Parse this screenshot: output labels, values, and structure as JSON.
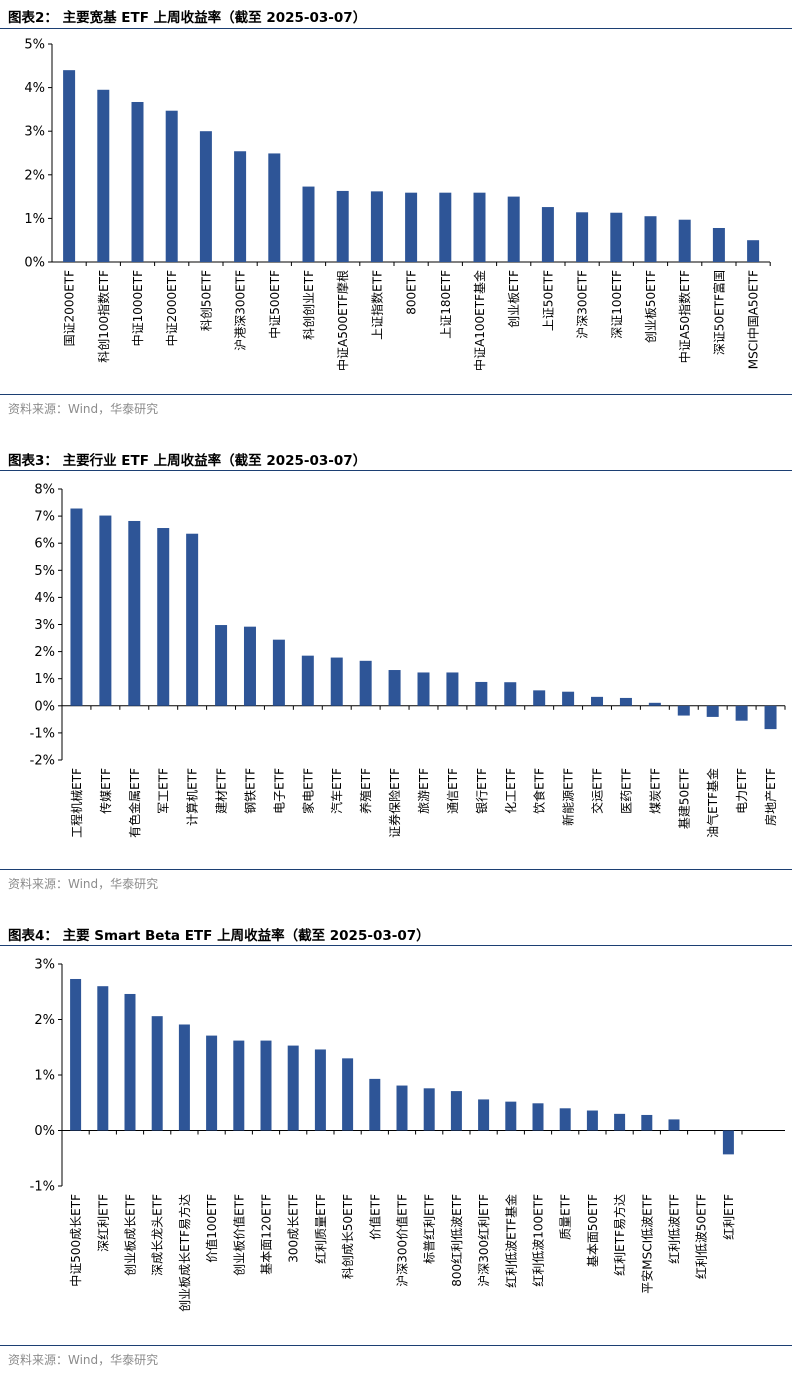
{
  "charts": [
    {
      "figure_title": "图表2：  主要宽基 ETF 上周收益率（截至 2025-03-07）",
      "source": "资料来源：Wind，华泰研究",
      "chart_data": {
        "type": "bar",
        "ylim": [
          0,
          5
        ],
        "ytick_values": [
          0,
          1,
          2,
          3,
          4,
          5
        ],
        "ytick_labels": [
          "0%",
          "1%",
          "2%",
          "3%",
          "4%",
          "5%"
        ],
        "bar_color": "#2e5597",
        "categories": [
          "国证2000ETF",
          "科创100指数ETF",
          "中证1000ETF",
          "中证2000ETF",
          "科创50ETF",
          "沪港深300ETF",
          "中证500ETF",
          "科创创业ETF",
          "中证A500ETF摩根",
          "上证指数ETF",
          "800ETF",
          "上证180ETF",
          "中证A100ETF基金",
          "创业板ETF",
          "上证50ETF",
          "沪深300ETF",
          "深证100ETF",
          "创业板50ETF",
          "中证A50指数ETF",
          "深证50ETF富国",
          "MSCI中国A50ETF"
        ],
        "values": [
          4.4,
          3.95,
          3.67,
          3.47,
          3.0,
          2.54,
          2.49,
          1.73,
          1.63,
          1.62,
          1.59,
          1.59,
          1.59,
          1.5,
          1.26,
          1.14,
          1.13,
          1.05,
          0.97,
          0.78,
          0.5
        ]
      }
    },
    {
      "figure_title": "图表3：  主要行业 ETF 上周收益率（截至 2025-03-07）",
      "source": "资料来源：Wind，华泰研究",
      "chart_data": {
        "type": "bar",
        "ylim": [
          -2,
          8
        ],
        "ytick_values": [
          -2,
          -1,
          0,
          1,
          2,
          3,
          4,
          5,
          6,
          7,
          8
        ],
        "ytick_labels": [
          "-2%",
          "-1%",
          "0%",
          "1%",
          "2%",
          "3%",
          "4%",
          "5%",
          "6%",
          "7%",
          "8%"
        ],
        "bar_color": "#2e5597",
        "categories": [
          "工程机械ETF",
          "传媒ETF",
          "有色金属ETF",
          "军工ETF",
          "计算机ETF",
          "建材ETF",
          "钢铁ETF",
          "电子ETF",
          "家电ETF",
          "汽车ETF",
          "养殖ETF",
          "证券保险ETF",
          "旅游ETF",
          "通信ETF",
          "银行ETF",
          "化工ETF",
          "饮食ETF",
          "新能源ETF",
          "交运ETF",
          "医药ETF",
          "煤炭ETF",
          "基建50ETF",
          "油气ETF基金",
          "电力ETF",
          "房地产ETF"
        ],
        "values": [
          7.28,
          7.02,
          6.82,
          6.56,
          6.35,
          2.98,
          2.92,
          2.44,
          1.85,
          1.78,
          1.66,
          1.32,
          1.23,
          1.23,
          0.88,
          0.87,
          0.57,
          0.52,
          0.33,
          0.29,
          0.11,
          -0.36,
          -0.41,
          -0.55,
          -0.86
        ]
      }
    },
    {
      "figure_title": "图表4：  主要 Smart Beta ETF 上周收益率（截至 2025-03-07）",
      "source": "资料来源：Wind，华泰研究",
      "chart_data": {
        "type": "bar",
        "ylim": [
          -1,
          3
        ],
        "ytick_values": [
          -1,
          0,
          1,
          2,
          3
        ],
        "ytick_labels": [
          "-1%",
          "0%",
          "1%",
          "2%",
          "3%"
        ],
        "bar_color": "#2e5597",
        "categories": [
          "中证500成长ETF",
          "深红利ETF",
          "创业板成长ETF",
          "深成长龙头ETF",
          "创业板成长ETF易方达",
          "价值100ETF",
          "创业板价值ETF",
          "基本面120ETF",
          "300成长ETF",
          "红利质量ETF",
          "科创成长50ETF",
          "价值ETF",
          "沪深300价值ETF",
          "标普红利ETF",
          "800红利低波ETF",
          "沪深300红利ETF",
          "红利低波ETF基金",
          "红利低波100ETF",
          "质量ETF",
          "基本面50ETF",
          "红利ETF易方达",
          "平安MSCI低波ETF",
          "红利低波ETF",
          "红利低波50ETF",
          "红利ETF"
        ],
        "values": [
          2.73,
          2.6,
          2.46,
          2.06,
          1.91,
          1.71,
          1.62,
          1.62,
          1.53,
          1.46,
          1.3,
          0.93,
          0.81,
          0.76,
          0.71,
          0.56,
          0.52,
          0.49,
          0.4,
          0.36,
          0.3,
          0.28,
          0.2,
          0.0,
          -0.43
        ]
      }
    }
  ]
}
